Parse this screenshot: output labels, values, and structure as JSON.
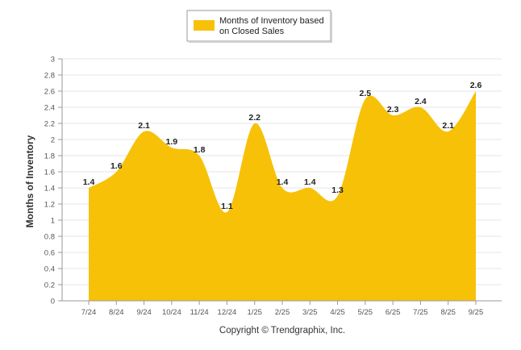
{
  "chart_data": {
    "type": "area",
    "categories": [
      "7/24",
      "8/24",
      "9/24",
      "10/24",
      "11/24",
      "12/24",
      "1/25",
      "2/25",
      "3/25",
      "4/25",
      "5/25",
      "6/25",
      "7/25",
      "8/25",
      "9/25"
    ],
    "series": [
      {
        "name": "Months of Inventory based on Closed Sales",
        "legend_lines": [
          "Months of Inventory based",
          "on Closed Sales"
        ],
        "values": [
          1.4,
          1.6,
          2.1,
          1.9,
          1.8,
          1.1,
          2.2,
          1.4,
          1.4,
          1.3,
          2.5,
          2.3,
          2.4,
          2.1,
          2.6
        ],
        "color": "#F7C108"
      }
    ],
    "title": "",
    "xlabel": "",
    "ylabel": "Months of Inventory",
    "ylim": [
      0,
      3
    ],
    "yticks": [
      "0",
      "0.2",
      "0.4",
      "0.6",
      "0.8",
      "1",
      "1.2",
      "1.4",
      "1.6",
      "1.8",
      "2",
      "2.2",
      "2.4",
      "2.6",
      "2.8",
      "3"
    ],
    "grid": true,
    "legend_position": "top-center"
  },
  "footer": {
    "copyright": "Copyright © Trendgraphix, Inc."
  }
}
